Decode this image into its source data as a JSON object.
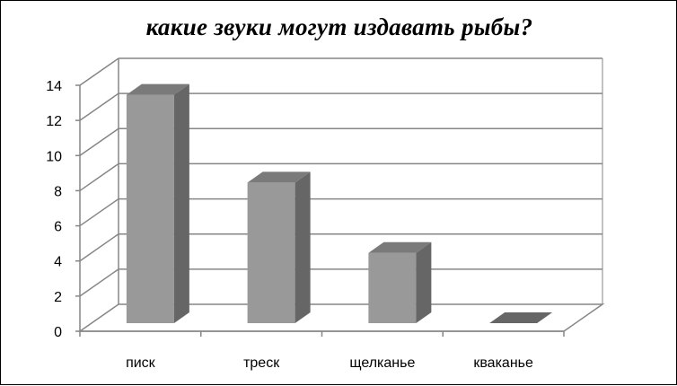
{
  "chart_data": {
    "type": "bar",
    "title": "какие звуки могут издавать рыбы?",
    "categories": [
      "писк",
      "треск",
      "щелканье",
      "кваканье"
    ],
    "values": [
      13,
      8,
      4,
      0
    ],
    "ylim": [
      0,
      14
    ],
    "yticks": [
      0,
      2,
      4,
      6,
      8,
      10,
      12,
      14
    ],
    "xlabel": "",
    "ylabel": "",
    "grid": true,
    "legend": "none",
    "style": "3d",
    "colors": {
      "bar_front": "#999999",
      "bar_side": "#666666",
      "bar_top": "#7a7a7a",
      "grid": "#868686",
      "floor": "#ffffff"
    }
  }
}
